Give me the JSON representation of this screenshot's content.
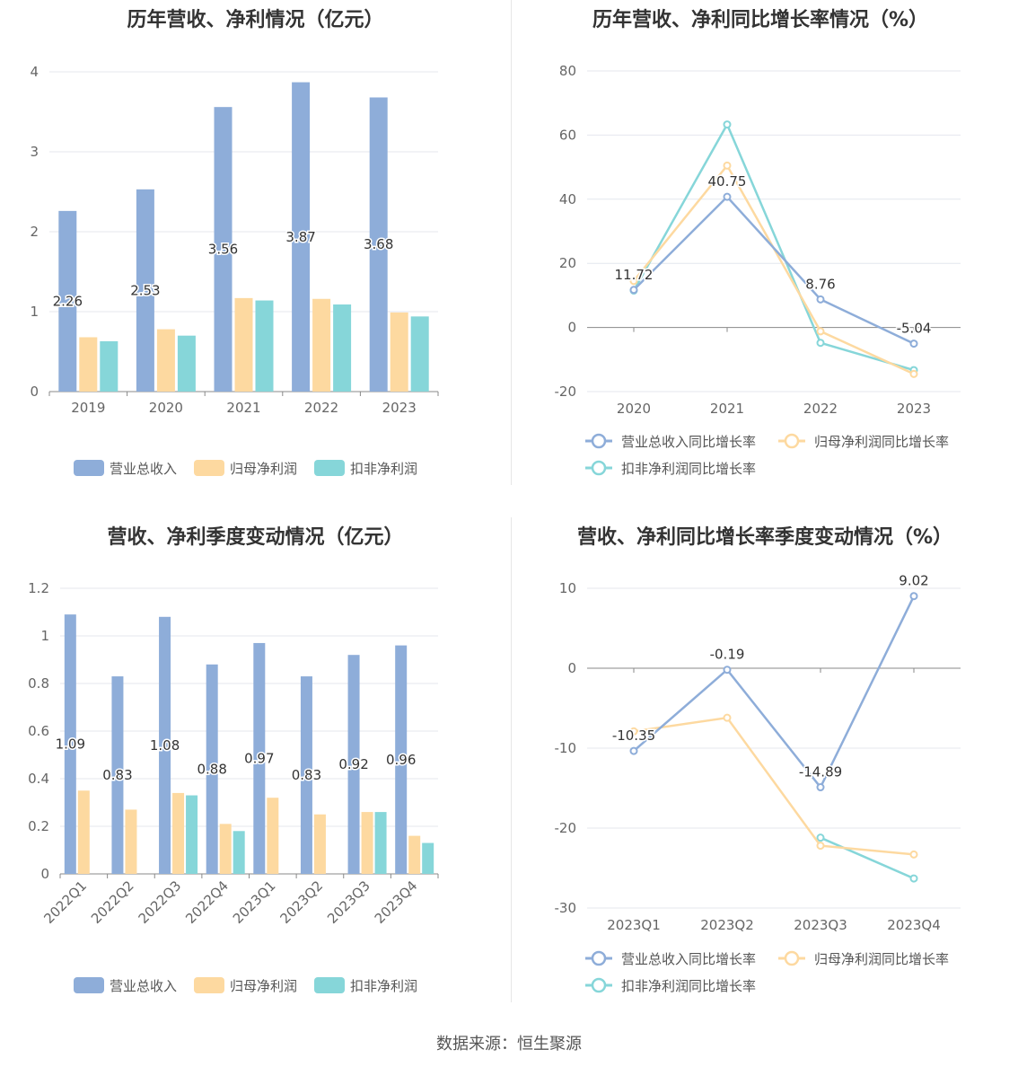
{
  "colors": {
    "revenue": "#8eadd9",
    "net_profit": "#fdd9a0",
    "deducted_profit": "#86d6d9"
  },
  "source": "数据来源：恒生聚源",
  "chart_data": [
    {
      "id": "annual-bar",
      "type": "bar",
      "title": "历年营收、净利情况（亿元）",
      "categories": [
        "2019",
        "2020",
        "2021",
        "2022",
        "2023"
      ],
      "ylim": [
        0,
        4
      ],
      "yticks": [
        "0",
        "1",
        "2",
        "3",
        "4"
      ],
      "series": [
        {
          "name": "营业总收入",
          "values": [
            2.26,
            2.53,
            3.56,
            3.87,
            3.68
          ],
          "labels": [
            "2.26",
            "2.53",
            "3.56",
            "3.87",
            "3.68"
          ]
        },
        {
          "name": "归母净利润",
          "values": [
            0.68,
            0.78,
            1.17,
            1.16,
            0.99
          ]
        },
        {
          "name": "扣非净利润",
          "values": [
            0.63,
            0.7,
            1.14,
            1.09,
            0.94
          ]
        }
      ],
      "legend_position": "bottom"
    },
    {
      "id": "annual-line",
      "type": "line",
      "title": "历年营收、净利同比增长率情况（%）",
      "categories": [
        "2020",
        "2021",
        "2022",
        "2023"
      ],
      "ylim": [
        -20,
        80
      ],
      "yticks": [
        "-20",
        "0",
        "20",
        "40",
        "60",
        "80"
      ],
      "series": [
        {
          "name": "营业总收入同比增长率",
          "values": [
            11.72,
            40.75,
            8.76,
            -5.04
          ],
          "labels": [
            "11.72",
            "40.75",
            "8.76",
            "-5.04"
          ]
        },
        {
          "name": "归母净利润同比增长率",
          "values": [
            14.5,
            50.5,
            -1.2,
            -14.5
          ]
        },
        {
          "name": "扣非净利润同比增长率",
          "values": [
            11.5,
            63.3,
            -4.8,
            -13.3
          ]
        }
      ],
      "legend_position": "bottom"
    },
    {
      "id": "quarter-bar",
      "type": "bar",
      "title": "营收、净利季度变动情况（亿元）",
      "categories": [
        "2022Q1",
        "2022Q2",
        "2022Q3",
        "2022Q4",
        "2023Q1",
        "2023Q2",
        "2023Q3",
        "2023Q4"
      ],
      "ylim": [
        0,
        1.2
      ],
      "yticks": [
        "0",
        "0.2",
        "0.4",
        "0.6",
        "0.8",
        "1",
        "1.2"
      ],
      "series": [
        {
          "name": "营业总收入",
          "values": [
            1.09,
            0.83,
            1.08,
            0.88,
            0.97,
            0.83,
            0.92,
            0.96
          ],
          "labels": [
            "1.09",
            "0.83",
            "1.08",
            "0.88",
            "0.97",
            "0.83",
            "0.92",
            "0.96"
          ]
        },
        {
          "name": "归母净利润",
          "values": [
            0.35,
            0.27,
            0.34,
            0.21,
            0.32,
            0.25,
            0.26,
            0.16
          ]
        },
        {
          "name": "扣非净利润",
          "values": [
            null,
            null,
            0.33,
            0.18,
            null,
            null,
            0.26,
            0.13
          ]
        }
      ],
      "legend_position": "bottom"
    },
    {
      "id": "quarter-line",
      "type": "line",
      "title": "营收、净利同比增长率季度变动情况（%）",
      "categories": [
        "2023Q1",
        "2023Q2",
        "2023Q3",
        "2023Q4"
      ],
      "ylim": [
        -30,
        10
      ],
      "yticks": [
        "-30",
        "-20",
        "-10",
        "0",
        "10"
      ],
      "series": [
        {
          "name": "营业总收入同比增长率",
          "values": [
            -10.35,
            -0.19,
            -14.89,
            9.02
          ],
          "labels": [
            "-10.35",
            "-0.19",
            "-14.89",
            "9.02"
          ]
        },
        {
          "name": "归母净利润同比增长率",
          "values": [
            -7.9,
            -6.2,
            -22.2,
            -23.3
          ]
        },
        {
          "name": "扣非净利润同比增长率",
          "values": [
            null,
            null,
            -21.2,
            -26.3
          ]
        }
      ],
      "legend_position": "bottom"
    }
  ]
}
